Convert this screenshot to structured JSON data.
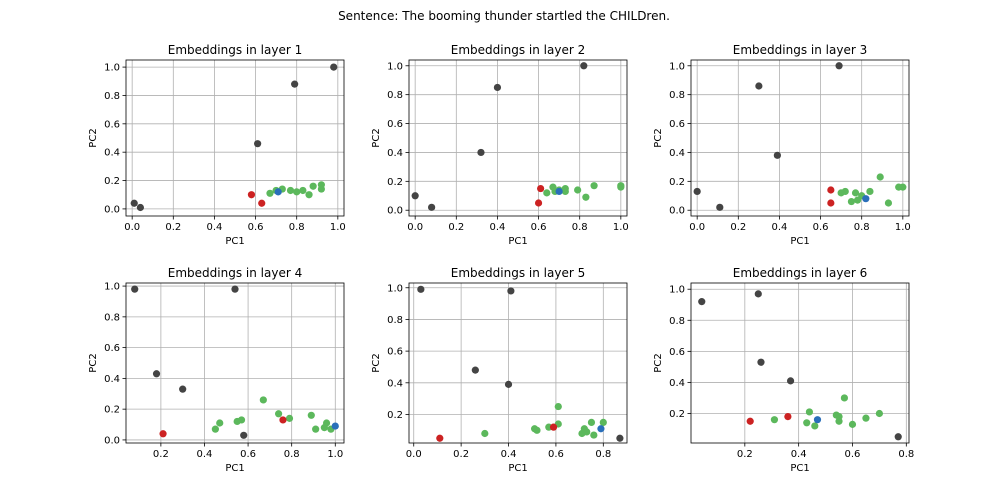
{
  "figure_title": "Sentence: The booming thunder startled the CHILDren.",
  "colors": {
    "gray": "#444444",
    "green": "#5cb85c",
    "red": "#cc2222",
    "blue": "#2a6fba",
    "grid": "#b0b0b0",
    "frame": "#000000"
  },
  "chart_data": [
    {
      "type": "scatter",
      "title": "Embeddings in layer 1",
      "xlabel": "PC1",
      "ylabel": "PC2",
      "xlim": [
        -0.03,
        1.03
      ],
      "ylim": [
        -0.05,
        1.05
      ],
      "xticks": [
        "0.0",
        "0.2",
        "0.4",
        "0.6",
        "0.8",
        "1.0"
      ],
      "yticks": [
        "0.0",
        "0.2",
        "0.4",
        "0.6",
        "0.8",
        "1.0"
      ],
      "grid": true,
      "points": [
        {
          "x": 0.01,
          "y": 0.04,
          "c": "gray"
        },
        {
          "x": 0.04,
          "y": 0.01,
          "c": "gray"
        },
        {
          "x": 0.61,
          "y": 0.46,
          "c": "gray"
        },
        {
          "x": 0.79,
          "y": 0.88,
          "c": "gray"
        },
        {
          "x": 0.98,
          "y": 1.0,
          "c": "gray"
        },
        {
          "x": 0.67,
          "y": 0.11,
          "c": "green"
        },
        {
          "x": 0.7,
          "y": 0.13,
          "c": "green"
        },
        {
          "x": 0.73,
          "y": 0.14,
          "c": "green"
        },
        {
          "x": 0.77,
          "y": 0.13,
          "c": "green"
        },
        {
          "x": 0.8,
          "y": 0.12,
          "c": "green"
        },
        {
          "x": 0.83,
          "y": 0.13,
          "c": "green"
        },
        {
          "x": 0.86,
          "y": 0.1,
          "c": "green"
        },
        {
          "x": 0.88,
          "y": 0.16,
          "c": "green"
        },
        {
          "x": 0.92,
          "y": 0.14,
          "c": "green"
        },
        {
          "x": 0.92,
          "y": 0.17,
          "c": "green"
        },
        {
          "x": 0.58,
          "y": 0.1,
          "c": "red"
        },
        {
          "x": 0.63,
          "y": 0.04,
          "c": "red"
        },
        {
          "x": 0.71,
          "y": 0.12,
          "c": "blue"
        }
      ]
    },
    {
      "type": "scatter",
      "title": "Embeddings in layer 2",
      "xlabel": "PC1",
      "ylabel": "PC2",
      "xlim": [
        -0.03,
        1.03
      ],
      "ylim": [
        -0.04,
        1.04
      ],
      "xticks": [
        "0.0",
        "0.2",
        "0.4",
        "0.6",
        "0.8",
        "1.0"
      ],
      "yticks": [
        "0.0",
        "0.2",
        "0.4",
        "0.6",
        "0.8",
        "1.0"
      ],
      "grid": true,
      "points": [
        {
          "x": 0.0,
          "y": 0.1,
          "c": "gray"
        },
        {
          "x": 0.08,
          "y": 0.02,
          "c": "gray"
        },
        {
          "x": 0.32,
          "y": 0.4,
          "c": "gray"
        },
        {
          "x": 0.4,
          "y": 0.85,
          "c": "gray"
        },
        {
          "x": 0.82,
          "y": 1.0,
          "c": "gray"
        },
        {
          "x": 0.64,
          "y": 0.12,
          "c": "green"
        },
        {
          "x": 0.67,
          "y": 0.16,
          "c": "green"
        },
        {
          "x": 0.68,
          "y": 0.13,
          "c": "green"
        },
        {
          "x": 0.7,
          "y": 0.14,
          "c": "green"
        },
        {
          "x": 0.73,
          "y": 0.13,
          "c": "green"
        },
        {
          "x": 0.73,
          "y": 0.15,
          "c": "green"
        },
        {
          "x": 0.79,
          "y": 0.14,
          "c": "green"
        },
        {
          "x": 0.83,
          "y": 0.09,
          "c": "green"
        },
        {
          "x": 0.87,
          "y": 0.17,
          "c": "green"
        },
        {
          "x": 1.0,
          "y": 0.16,
          "c": "green"
        },
        {
          "x": 1.0,
          "y": 0.17,
          "c": "green"
        },
        {
          "x": 0.61,
          "y": 0.15,
          "c": "red"
        },
        {
          "x": 0.6,
          "y": 0.05,
          "c": "red"
        },
        {
          "x": 0.7,
          "y": 0.13,
          "c": "blue"
        }
      ]
    },
    {
      "type": "scatter",
      "title": "Embeddings in layer 3",
      "xlabel": "PC1",
      "ylabel": "PC2",
      "xlim": [
        -0.03,
        1.03
      ],
      "ylim": [
        -0.04,
        1.04
      ],
      "xticks": [
        "0.0",
        "0.2",
        "0.4",
        "0.6",
        "0.8",
        "1.0"
      ],
      "yticks": [
        "0.0",
        "0.2",
        "0.4",
        "0.6",
        "0.8",
        "1.0"
      ],
      "grid": true,
      "points": [
        {
          "x": 0.0,
          "y": 0.13,
          "c": "gray"
        },
        {
          "x": 0.11,
          "y": 0.02,
          "c": "gray"
        },
        {
          "x": 0.3,
          "y": 0.86,
          "c": "gray"
        },
        {
          "x": 0.39,
          "y": 0.38,
          "c": "gray"
        },
        {
          "x": 0.69,
          "y": 1.0,
          "c": "gray"
        },
        {
          "x": 0.7,
          "y": 0.12,
          "c": "green"
        },
        {
          "x": 0.72,
          "y": 0.13,
          "c": "green"
        },
        {
          "x": 0.75,
          "y": 0.06,
          "c": "green"
        },
        {
          "x": 0.77,
          "y": 0.12,
          "c": "green"
        },
        {
          "x": 0.78,
          "y": 0.07,
          "c": "green"
        },
        {
          "x": 0.8,
          "y": 0.1,
          "c": "green"
        },
        {
          "x": 0.84,
          "y": 0.13,
          "c": "green"
        },
        {
          "x": 0.89,
          "y": 0.23,
          "c": "green"
        },
        {
          "x": 0.93,
          "y": 0.05,
          "c": "green"
        },
        {
          "x": 0.98,
          "y": 0.16,
          "c": "green"
        },
        {
          "x": 1.0,
          "y": 0.16,
          "c": "green"
        },
        {
          "x": 0.65,
          "y": 0.14,
          "c": "red"
        },
        {
          "x": 0.65,
          "y": 0.05,
          "c": "red"
        },
        {
          "x": 0.82,
          "y": 0.08,
          "c": "blue"
        }
      ]
    },
    {
      "type": "scatter",
      "title": "Embeddings in layer 4",
      "xlabel": "PC1",
      "ylabel": "PC2",
      "xlim": [
        0.04,
        1.04
      ],
      "ylim": [
        -0.02,
        1.02
      ],
      "xticks": [
        "0.2",
        "0.4",
        "0.6",
        "0.8",
        "1.0"
      ],
      "yticks": [
        "0.0",
        "0.2",
        "0.4",
        "0.6",
        "0.8",
        "1.0"
      ],
      "grid": true,
      "points": [
        {
          "x": 0.08,
          "y": 0.98,
          "c": "gray"
        },
        {
          "x": 0.18,
          "y": 0.43,
          "c": "gray"
        },
        {
          "x": 0.3,
          "y": 0.33,
          "c": "gray"
        },
        {
          "x": 0.54,
          "y": 0.98,
          "c": "gray"
        },
        {
          "x": 0.58,
          "y": 0.03,
          "c": "gray"
        },
        {
          "x": 0.45,
          "y": 0.07,
          "c": "green"
        },
        {
          "x": 0.47,
          "y": 0.11,
          "c": "green"
        },
        {
          "x": 0.55,
          "y": 0.12,
          "c": "green"
        },
        {
          "x": 0.57,
          "y": 0.13,
          "c": "green"
        },
        {
          "x": 0.67,
          "y": 0.26,
          "c": "green"
        },
        {
          "x": 0.74,
          "y": 0.17,
          "c": "green"
        },
        {
          "x": 0.79,
          "y": 0.14,
          "c": "green"
        },
        {
          "x": 0.89,
          "y": 0.16,
          "c": "green"
        },
        {
          "x": 0.91,
          "y": 0.07,
          "c": "green"
        },
        {
          "x": 0.95,
          "y": 0.08,
          "c": "green"
        },
        {
          "x": 0.96,
          "y": 0.11,
          "c": "green"
        },
        {
          "x": 0.98,
          "y": 0.07,
          "c": "green"
        },
        {
          "x": 0.21,
          "y": 0.04,
          "c": "red"
        },
        {
          "x": 0.76,
          "y": 0.13,
          "c": "red"
        },
        {
          "x": 1.0,
          "y": 0.09,
          "c": "blue"
        }
      ]
    },
    {
      "type": "scatter",
      "title": "Embeddings in layer 5",
      "xlabel": "PC1",
      "ylabel": "PC2",
      "xlim": [
        -0.02,
        0.9
      ],
      "ylim": [
        0.02,
        1.03
      ],
      "xticks": [
        "0.0",
        "0.2",
        "0.4",
        "0.6",
        "0.8"
      ],
      "yticks": [
        "0.2",
        "0.4",
        "0.6",
        "0.8",
        "1.0"
      ],
      "grid": true,
      "points": [
        {
          "x": 0.03,
          "y": 0.99,
          "c": "gray"
        },
        {
          "x": 0.26,
          "y": 0.48,
          "c": "gray"
        },
        {
          "x": 0.4,
          "y": 0.39,
          "c": "gray"
        },
        {
          "x": 0.41,
          "y": 0.98,
          "c": "gray"
        },
        {
          "x": 0.87,
          "y": 0.05,
          "c": "gray"
        },
        {
          "x": 0.3,
          "y": 0.08,
          "c": "green"
        },
        {
          "x": 0.51,
          "y": 0.11,
          "c": "green"
        },
        {
          "x": 0.52,
          "y": 0.1,
          "c": "green"
        },
        {
          "x": 0.57,
          "y": 0.12,
          "c": "green"
        },
        {
          "x": 0.61,
          "y": 0.25,
          "c": "green"
        },
        {
          "x": 0.61,
          "y": 0.14,
          "c": "green"
        },
        {
          "x": 0.71,
          "y": 0.08,
          "c": "green"
        },
        {
          "x": 0.72,
          "y": 0.11,
          "c": "green"
        },
        {
          "x": 0.73,
          "y": 0.09,
          "c": "green"
        },
        {
          "x": 0.75,
          "y": 0.15,
          "c": "green"
        },
        {
          "x": 0.76,
          "y": 0.07,
          "c": "green"
        },
        {
          "x": 0.8,
          "y": 0.15,
          "c": "green"
        },
        {
          "x": 0.11,
          "y": 0.05,
          "c": "red"
        },
        {
          "x": 0.59,
          "y": 0.12,
          "c": "red"
        },
        {
          "x": 0.79,
          "y": 0.11,
          "c": "blue"
        }
      ]
    },
    {
      "type": "scatter",
      "title": "Embeddings in layer 6",
      "xlabel": "PC1",
      "ylabel": "PC2",
      "xlim": [
        0.0,
        0.81
      ],
      "ylim": [
        0.01,
        1.04
      ],
      "xticks": [
        "0.2",
        "0.4",
        "0.6",
        "0.8"
      ],
      "yticks": [
        "0.2",
        "0.4",
        "0.6",
        "0.8",
        "1.0"
      ],
      "grid": true,
      "points": [
        {
          "x": 0.04,
          "y": 0.92,
          "c": "gray"
        },
        {
          "x": 0.25,
          "y": 0.97,
          "c": "gray"
        },
        {
          "x": 0.26,
          "y": 0.53,
          "c": "gray"
        },
        {
          "x": 0.37,
          "y": 0.41,
          "c": "gray"
        },
        {
          "x": 0.77,
          "y": 0.05,
          "c": "gray"
        },
        {
          "x": 0.31,
          "y": 0.16,
          "c": "green"
        },
        {
          "x": 0.43,
          "y": 0.14,
          "c": "green"
        },
        {
          "x": 0.44,
          "y": 0.21,
          "c": "green"
        },
        {
          "x": 0.46,
          "y": 0.12,
          "c": "green"
        },
        {
          "x": 0.54,
          "y": 0.19,
          "c": "green"
        },
        {
          "x": 0.55,
          "y": 0.15,
          "c": "green"
        },
        {
          "x": 0.55,
          "y": 0.18,
          "c": "green"
        },
        {
          "x": 0.57,
          "y": 0.3,
          "c": "green"
        },
        {
          "x": 0.6,
          "y": 0.13,
          "c": "green"
        },
        {
          "x": 0.65,
          "y": 0.17,
          "c": "green"
        },
        {
          "x": 0.7,
          "y": 0.2,
          "c": "green"
        },
        {
          "x": 0.22,
          "y": 0.15,
          "c": "red"
        },
        {
          "x": 0.36,
          "y": 0.18,
          "c": "red"
        },
        {
          "x": 0.47,
          "y": 0.16,
          "c": "blue"
        }
      ]
    }
  ]
}
